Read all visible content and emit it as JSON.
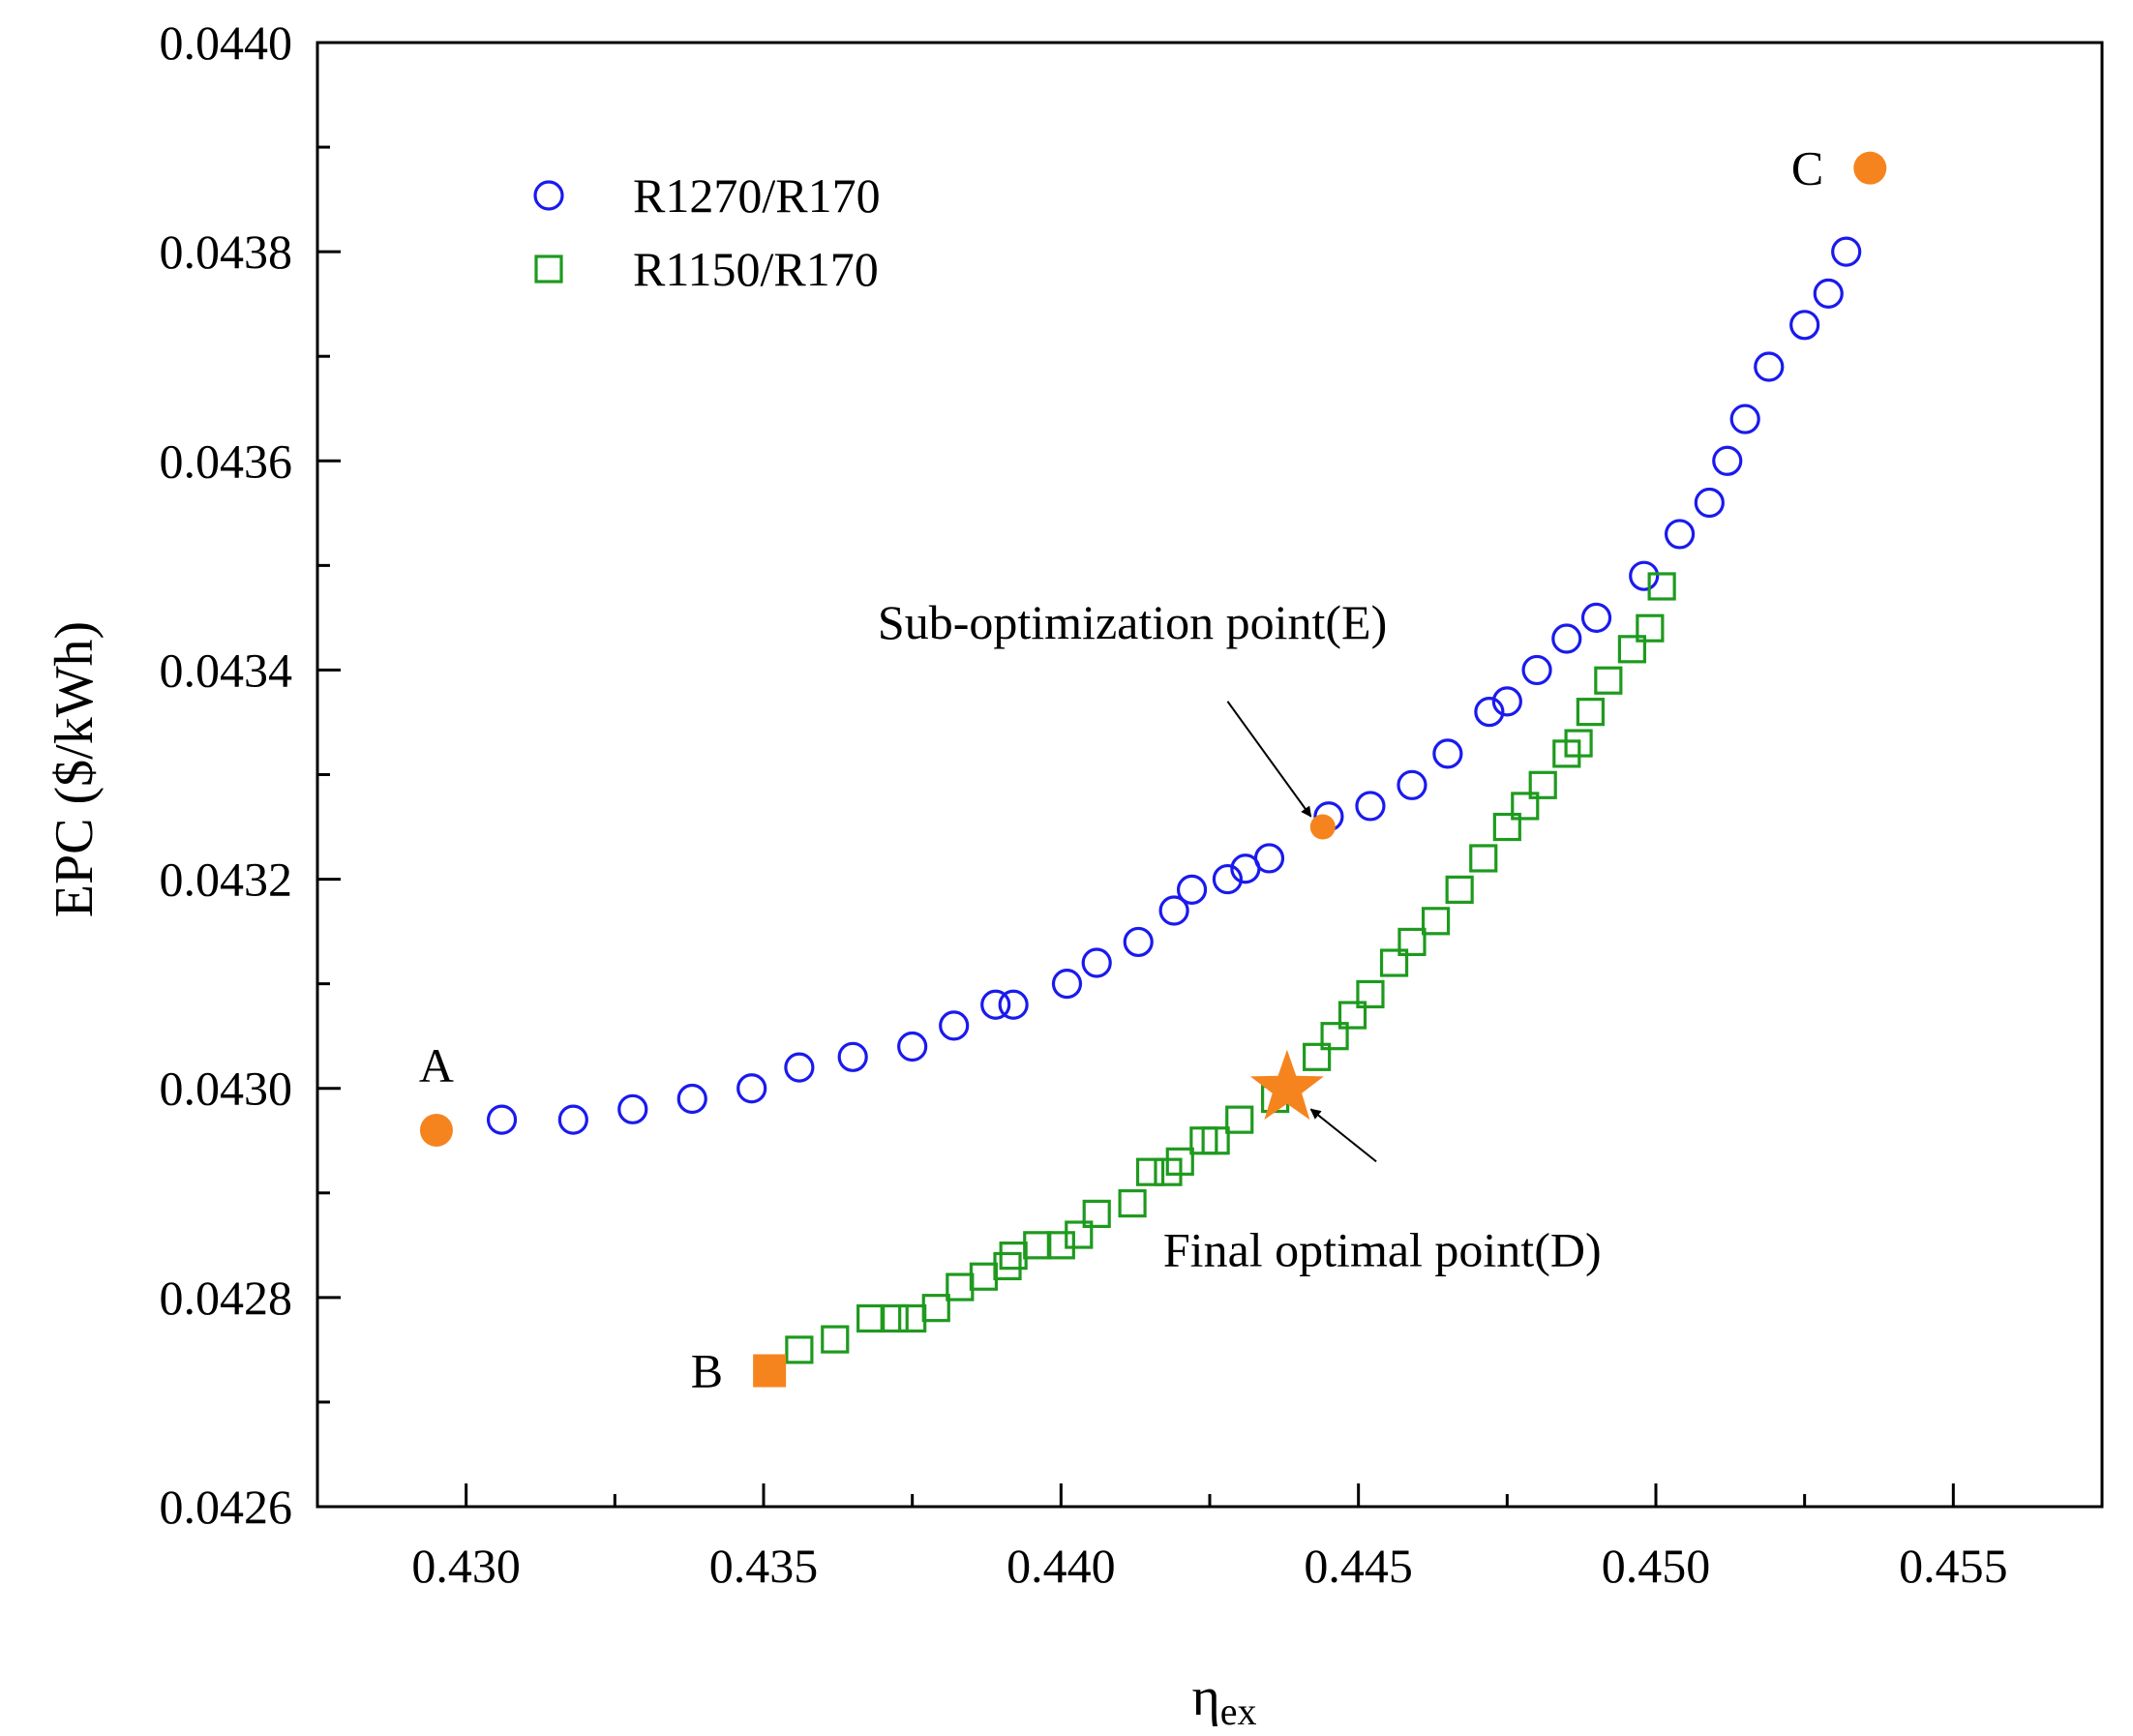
{
  "chart_data": {
    "type": "scatter",
    "xlabel": "η",
    "xlabel_sub": "ex",
    "ylabel": "EPC ($/kWh)",
    "xlim": [
      0.4275,
      0.4575
    ],
    "ylim": [
      0.0426,
      0.044
    ],
    "xticks": [
      0.43,
      0.435,
      0.44,
      0.445,
      0.45,
      0.455
    ],
    "xtick_labels": [
      "0.430",
      "0.435",
      "0.440",
      "0.445",
      "0.450",
      "0.455"
    ],
    "yticks": [
      0.0426,
      0.0428,
      0.043,
      0.0432,
      0.0434,
      0.0436,
      0.0438,
      0.044
    ],
    "ytick_labels": [
      "0.0426",
      "0.0428",
      "0.0430",
      "0.0432",
      "0.0434",
      "0.0436",
      "0.0438",
      "0.0440"
    ],
    "grid": false,
    "legend": "top-left",
    "series": [
      {
        "name": "R1270/R170",
        "marker": "circle",
        "color": "#1a1aee",
        "points": [
          [
            0.4306,
            0.04297
          ],
          [
            0.4318,
            0.04297
          ],
          [
            0.4328,
            0.04298
          ],
          [
            0.4338,
            0.04299
          ],
          [
            0.4348,
            0.043
          ],
          [
            0.4356,
            0.04302
          ],
          [
            0.4365,
            0.04303
          ],
          [
            0.4375,
            0.04304
          ],
          [
            0.4382,
            0.04306
          ],
          [
            0.4389,
            0.04308
          ],
          [
            0.4392,
            0.04308
          ],
          [
            0.4401,
            0.0431
          ],
          [
            0.4406,
            0.04312
          ],
          [
            0.4413,
            0.04314
          ],
          [
            0.4419,
            0.04317
          ],
          [
            0.4422,
            0.04319
          ],
          [
            0.4428,
            0.0432
          ],
          [
            0.4431,
            0.04321
          ],
          [
            0.4435,
            0.04322
          ],
          [
            0.4445,
            0.04326
          ],
          [
            0.4452,
            0.04327
          ],
          [
            0.4459,
            0.04329
          ],
          [
            0.4465,
            0.04332
          ],
          [
            0.4472,
            0.04336
          ],
          [
            0.4475,
            0.04337
          ],
          [
            0.448,
            0.0434
          ],
          [
            0.4485,
            0.04343
          ],
          [
            0.449,
            0.04345
          ],
          [
            0.4498,
            0.04349
          ],
          [
            0.4504,
            0.04353
          ],
          [
            0.4509,
            0.04356
          ],
          [
            0.4512,
            0.0436
          ],
          [
            0.4515,
            0.04364
          ],
          [
            0.4519,
            0.04369
          ],
          [
            0.4525,
            0.04373
          ],
          [
            0.4529,
            0.04376
          ],
          [
            0.4532,
            0.0438
          ]
        ]
      },
      {
        "name": "R1150/R170",
        "marker": "square",
        "color": "#1e9a1e",
        "points": [
          [
            0.4356,
            0.04275
          ],
          [
            0.4362,
            0.04276
          ],
          [
            0.4368,
            0.04278
          ],
          [
            0.4372,
            0.04278
          ],
          [
            0.4375,
            0.04278
          ],
          [
            0.4379,
            0.04279
          ],
          [
            0.4383,
            0.04281
          ],
          [
            0.4387,
            0.04282
          ],
          [
            0.4391,
            0.04283
          ],
          [
            0.4392,
            0.04284
          ],
          [
            0.4396,
            0.04285
          ],
          [
            0.44,
            0.04285
          ],
          [
            0.4403,
            0.04286
          ],
          [
            0.4406,
            0.04288
          ],
          [
            0.4412,
            0.04289
          ],
          [
            0.4415,
            0.04292
          ],
          [
            0.4418,
            0.04292
          ],
          [
            0.442,
            0.04293
          ],
          [
            0.4424,
            0.04295
          ],
          [
            0.4426,
            0.04295
          ],
          [
            0.443,
            0.04297
          ],
          [
            0.4436,
            0.04299
          ],
          [
            0.4443,
            0.04303
          ],
          [
            0.4446,
            0.04305
          ],
          [
            0.4449,
            0.04307
          ],
          [
            0.4452,
            0.04309
          ],
          [
            0.4456,
            0.04312
          ],
          [
            0.4459,
            0.04314
          ],
          [
            0.4463,
            0.04316
          ],
          [
            0.4467,
            0.04319
          ],
          [
            0.4471,
            0.04322
          ],
          [
            0.4475,
            0.04325
          ],
          [
            0.4478,
            0.04327
          ],
          [
            0.4481,
            0.04329
          ],
          [
            0.4485,
            0.04332
          ],
          [
            0.4487,
            0.04333
          ],
          [
            0.4489,
            0.04336
          ],
          [
            0.4492,
            0.04339
          ],
          [
            0.4496,
            0.04342
          ],
          [
            0.4499,
            0.04344
          ],
          [
            0.4501,
            0.04348
          ]
        ]
      }
    ],
    "special_points": [
      {
        "label": "A",
        "x": 0.4295,
        "y": 0.04296,
        "marker": "filled-circle",
        "color": "#f5841f",
        "label_side": "above"
      },
      {
        "label": "B",
        "x": 0.4351,
        "y": 0.04273,
        "marker": "filled-square",
        "color": "#f5841f",
        "label_side": "left"
      },
      {
        "label": "C",
        "x": 0.4536,
        "y": 0.04388,
        "marker": "filled-circle",
        "color": "#f5841f",
        "label_side": "left"
      },
      {
        "label": "",
        "x": 0.4444,
        "y": 0.04325,
        "marker": "filled-circle-small",
        "color": "#f5841f",
        "label_side": ""
      },
      {
        "label": "",
        "x": 0.4438,
        "y": 0.043,
        "marker": "star",
        "color": "#f5841f",
        "label_side": ""
      }
    ],
    "annotations": [
      {
        "text": "Sub-optimization point(E)",
        "text_x": 0.4412,
        "text_y": 0.04343,
        "arrow_from": [
          0.4428,
          0.04337
        ],
        "arrow_to": [
          0.4442,
          0.04326
        ]
      },
      {
        "text": "Final optimal point(D)",
        "text_x": 0.4454,
        "text_y": 0.04283,
        "arrow_from": [
          0.4453,
          0.04293
        ],
        "arrow_to": [
          0.4442,
          0.04298
        ]
      }
    ]
  }
}
